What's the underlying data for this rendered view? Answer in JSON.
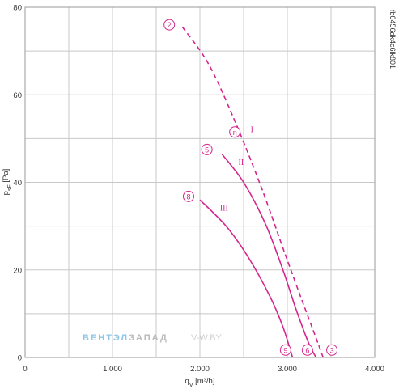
{
  "chart_data": {
    "type": "line",
    "title": "",
    "xlabel": "qV [m³/h]",
    "ylabel": "pSF [Pa]",
    "xlabel_main": "q",
    "xlabel_sub": "V",
    "xlabel_unit": " [m³/h]",
    "ylabel_main": "p",
    "ylabel_sub": "sF",
    "ylabel_unit": " [Pa]",
    "xlim": [
      0,
      4000
    ],
    "ylim": [
      0,
      80
    ],
    "grid": true,
    "x_ticks": [
      0,
      1000,
      2000,
      3000,
      4000
    ],
    "x_tick_labels": [
      "0",
      "1.000",
      "2.000",
      "3.000",
      "4.000"
    ],
    "y_ticks": [
      0,
      20,
      40,
      60,
      80
    ],
    "y_tick_labels": [
      "0",
      "20",
      "40",
      "60",
      "80"
    ],
    "series": [
      {
        "name": "I",
        "style": "dashed",
        "color": "#d4258c",
        "points": [
          [
            1800,
            75.5
          ],
          [
            2100,
            67
          ],
          [
            2400,
            54
          ],
          [
            2700,
            39
          ],
          [
            2950,
            25
          ],
          [
            3150,
            14
          ],
          [
            3300,
            6
          ],
          [
            3410,
            0
          ]
        ]
      },
      {
        "name": "II",
        "style": "solid",
        "color": "#d4258c",
        "points": [
          [
            2250,
            46.5
          ],
          [
            2500,
            40
          ],
          [
            2750,
            30.5
          ],
          [
            2950,
            20
          ],
          [
            3100,
            11
          ],
          [
            3250,
            3
          ],
          [
            3330,
            0
          ]
        ]
      },
      {
        "name": "III",
        "style": "solid",
        "color": "#d4258c",
        "points": [
          [
            2000,
            36
          ],
          [
            2300,
            30
          ],
          [
            2550,
            23
          ],
          [
            2800,
            14
          ],
          [
            2950,
            7
          ],
          [
            3060,
            0
          ]
        ]
      }
    ],
    "markers": [
      {
        "label": "2",
        "x": 1650,
        "y": 76,
        "color": "#d4258c"
      },
      {
        "label": "η",
        "x": 2400,
        "y": 51.5,
        "color": "#333333"
      },
      {
        "label": "5",
        "x": 2080,
        "y": 47.5,
        "color": "#d4258c"
      },
      {
        "label": "8",
        "x": 1870,
        "y": 36.8,
        "color": "#d4258c"
      },
      {
        "label": "9",
        "x": 2980,
        "y": 1.7,
        "color": "#d4258c"
      },
      {
        "label": "6",
        "x": 3230,
        "y": 1.7,
        "color": "#d4258c"
      },
      {
        "label": "3",
        "x": 3510,
        "y": 1.7,
        "color": "#d4258c"
      }
    ],
    "series_labels": [
      {
        "text": "I",
        "x": 2580,
        "y": 51.5
      },
      {
        "text": "II",
        "x": 2440,
        "y": 44
      },
      {
        "text": "III",
        "x": 2230,
        "y": 33.5
      }
    ]
  },
  "watermark": {
    "part1": "ВЕНТЭЛ",
    "part2": "ЗАПАД",
    "site": "V-W.BY"
  },
  "figure_code": "fb0456dk4c6lk801"
}
